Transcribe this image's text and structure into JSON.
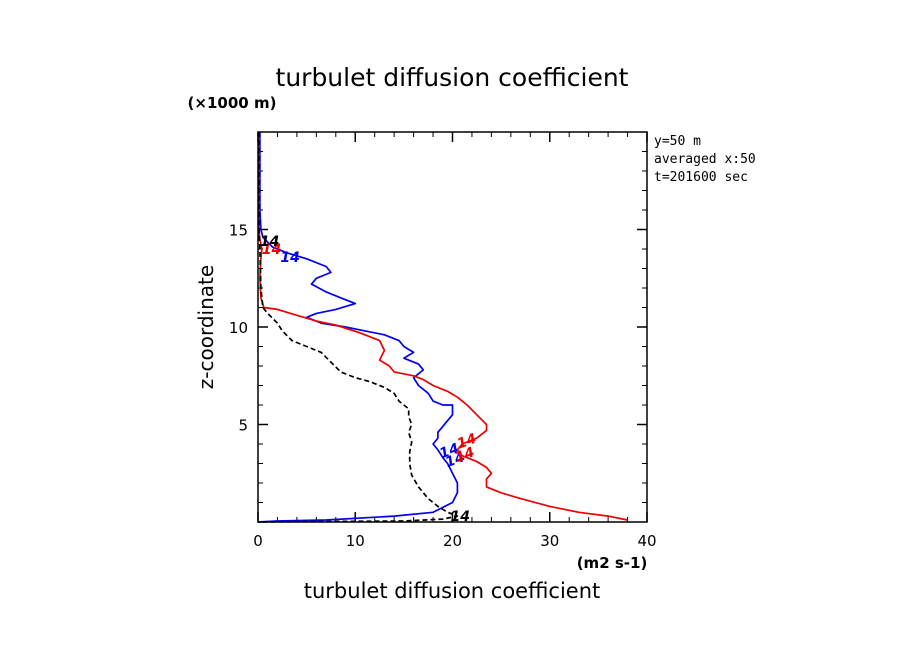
{
  "chart_data": {
    "type": "line",
    "title": "turbulet diffusion coefficient",
    "xlabel": "turbulet diffusion coefficient",
    "x_unit": "(m2 s-1)",
    "ylabel": "z-coordinate",
    "y_unit": "(×1000 m)",
    "xlim": [
      0,
      40
    ],
    "ylim": [
      0,
      20
    ],
    "x_ticks": [
      "0",
      "10",
      "20",
      "30",
      "40"
    ],
    "y_ticks": [
      "5",
      "10",
      "15"
    ],
    "annotations": [
      "y=50 m",
      "averaged  x:50",
      "t=201600 sec"
    ],
    "grid": false,
    "series": [
      {
        "color": "#0000ee",
        "dash": "",
        "label": "14",
        "points": [
          [
            0.2,
            20
          ],
          [
            0.2,
            16
          ],
          [
            0.3,
            15
          ],
          [
            0.5,
            14.6
          ],
          [
            1.5,
            14.1
          ],
          [
            3,
            13.8
          ],
          [
            5,
            13.5
          ],
          [
            7,
            13.1
          ],
          [
            7.5,
            12.8
          ],
          [
            6,
            12.5
          ],
          [
            5.5,
            12.2
          ],
          [
            7,
            11.8
          ],
          [
            8.5,
            11.5
          ],
          [
            10,
            11.2
          ],
          [
            8,
            10.9
          ],
          [
            6,
            10.7
          ],
          [
            5,
            10.5
          ],
          [
            6.5,
            10.2
          ],
          [
            9,
            10
          ],
          [
            11,
            9.8
          ],
          [
            13,
            9.6
          ],
          [
            14.5,
            9.3
          ],
          [
            15,
            9
          ],
          [
            16,
            8.7
          ],
          [
            15,
            8.4
          ],
          [
            16.5,
            8.1
          ],
          [
            17,
            7.8
          ],
          [
            16,
            7.4
          ],
          [
            16.5,
            7
          ],
          [
            17.5,
            6.6
          ],
          [
            18,
            6.2
          ],
          [
            19,
            6
          ],
          [
            20,
            6
          ],
          [
            20,
            5.5
          ],
          [
            19.5,
            5.2
          ],
          [
            19,
            4.9
          ],
          [
            18.5,
            4.6
          ],
          [
            18.5,
            4.3
          ],
          [
            18,
            4
          ],
          [
            18.5,
            3.7
          ],
          [
            19,
            3.3
          ],
          [
            19.5,
            3
          ],
          [
            20,
            2.5
          ],
          [
            20.5,
            2
          ],
          [
            20.5,
            1.5
          ],
          [
            20,
            1
          ],
          [
            18,
            0.5
          ],
          [
            14,
            0.3
          ],
          [
            7,
            0.1
          ],
          [
            2,
            0.05
          ],
          [
            0,
            0
          ]
        ]
      },
      {
        "color": "#ee0000",
        "dash": "",
        "label": "14",
        "points": [
          [
            0.1,
            20
          ],
          [
            0.1,
            15
          ],
          [
            0.2,
            14.5
          ],
          [
            0.4,
            14
          ],
          [
            0.3,
            13.5
          ],
          [
            0.2,
            12.5
          ],
          [
            0.3,
            11.5
          ],
          [
            0.6,
            11
          ],
          [
            2,
            10.9
          ],
          [
            4,
            10.6
          ],
          [
            6,
            10.3
          ],
          [
            8,
            10.1
          ],
          [
            10.5,
            9.7
          ],
          [
            12.5,
            9.3
          ],
          [
            13,
            8.8
          ],
          [
            12.5,
            8.3
          ],
          [
            13.5,
            8
          ],
          [
            14,
            7.7
          ],
          [
            16,
            7.5
          ],
          [
            17,
            7.3
          ],
          [
            18,
            7
          ],
          [
            19.5,
            6.7
          ],
          [
            20.5,
            6.4
          ],
          [
            21.5,
            6
          ],
          [
            22.5,
            5.5
          ],
          [
            23.5,
            5
          ],
          [
            23.5,
            4.7
          ],
          [
            22.5,
            4.3
          ],
          [
            21,
            4
          ],
          [
            20.5,
            3.7
          ],
          [
            21,
            3.4
          ],
          [
            22.5,
            3.1
          ],
          [
            23.5,
            2.8
          ],
          [
            24,
            2.5
          ],
          [
            23.5,
            2.2
          ],
          [
            23.5,
            1.8
          ],
          [
            25,
            1.5
          ],
          [
            27,
            1.2
          ],
          [
            30,
            0.8
          ],
          [
            33,
            0.5
          ],
          [
            36,
            0.3
          ],
          [
            38,
            0.1
          ]
        ]
      },
      {
        "color": "#000000",
        "dash": "5 3",
        "label": "14",
        "points": [
          [
            0.1,
            20
          ],
          [
            0.1,
            15
          ],
          [
            0.2,
            14
          ],
          [
            0.3,
            12
          ],
          [
            0.5,
            11
          ],
          [
            1,
            10.7
          ],
          [
            2,
            10.2
          ],
          [
            2.5,
            9.8
          ],
          [
            3.5,
            9.3
          ],
          [
            5,
            9
          ],
          [
            6.5,
            8.7
          ],
          [
            7.5,
            8.2
          ],
          [
            8.5,
            7.7
          ],
          [
            10,
            7.4
          ],
          [
            11.5,
            7.2
          ],
          [
            13,
            6.9
          ],
          [
            14,
            6.6
          ],
          [
            14.5,
            6.2
          ],
          [
            15.5,
            5.8
          ],
          [
            15.5,
            5.4
          ],
          [
            15.8,
            5
          ],
          [
            15.5,
            4.6
          ],
          [
            15.8,
            4.1
          ],
          [
            15.6,
            3.6
          ],
          [
            15.6,
            3
          ],
          [
            15.8,
            2.4
          ],
          [
            16.5,
            1.8
          ],
          [
            17.5,
            1.2
          ],
          [
            18.5,
            0.8
          ],
          [
            19.5,
            0.5
          ],
          [
            20.5,
            0.3
          ],
          [
            19,
            0.15
          ],
          [
            15,
            0.05
          ],
          [
            5,
            0.02
          ],
          [
            0,
            0
          ]
        ]
      }
    ]
  }
}
